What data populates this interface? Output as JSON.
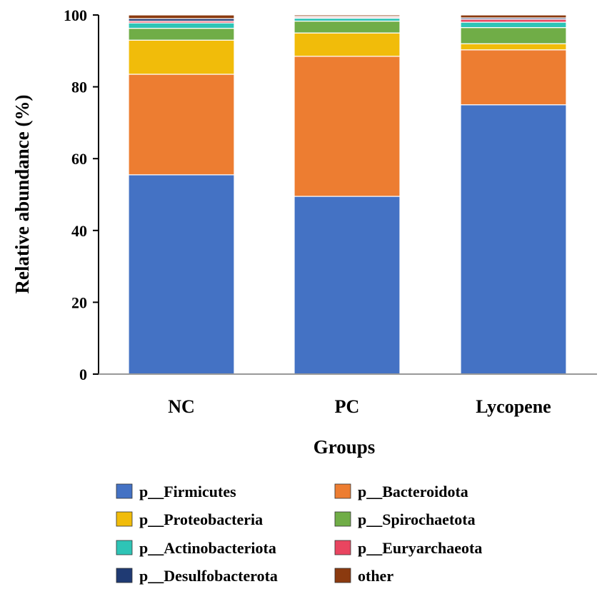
{
  "chart_data": {
    "type": "bar",
    "stacked": true,
    "title": "",
    "xlabel": "Groups",
    "ylabel": "Relative abundance (%)",
    "ylim": [
      0,
      100
    ],
    "yticks": [
      "0",
      "20",
      "40",
      "60",
      "80",
      "100"
    ],
    "categories": [
      "NC",
      "PC",
      "Lycopene"
    ],
    "series": [
      {
        "name": "p__Firmicutes",
        "color": "#4472C4",
        "values": [
          55.5,
          49.5,
          75.0
        ]
      },
      {
        "name": "p__Bacteroidota",
        "color": "#ED7D31",
        "values": [
          28.0,
          39.0,
          15.3
        ]
      },
      {
        "name": "p__Proteobacteria",
        "color": "#F1BC0A",
        "values": [
          9.5,
          6.5,
          1.7
        ]
      },
      {
        "name": "p__Spirochaetota",
        "color": "#70AD47",
        "values": [
          3.3,
          3.3,
          4.5
        ]
      },
      {
        "name": "p__Actinobacteriota",
        "color": "#2EC4B6",
        "values": [
          1.5,
          0.8,
          1.5
        ]
      },
      {
        "name": "p__Euryarchaeota",
        "color": "#E94560",
        "values": [
          0.5,
          0.3,
          0.8
        ]
      },
      {
        "name": "p__Desulfobacterota",
        "color": "#1F3A73",
        "values": [
          0.7,
          0.2,
          0.4
        ]
      },
      {
        "name": "other",
        "color": "#8B3A0F",
        "values": [
          1.0,
          0.4,
          0.8
        ]
      }
    ],
    "legend_position": "bottom"
  }
}
